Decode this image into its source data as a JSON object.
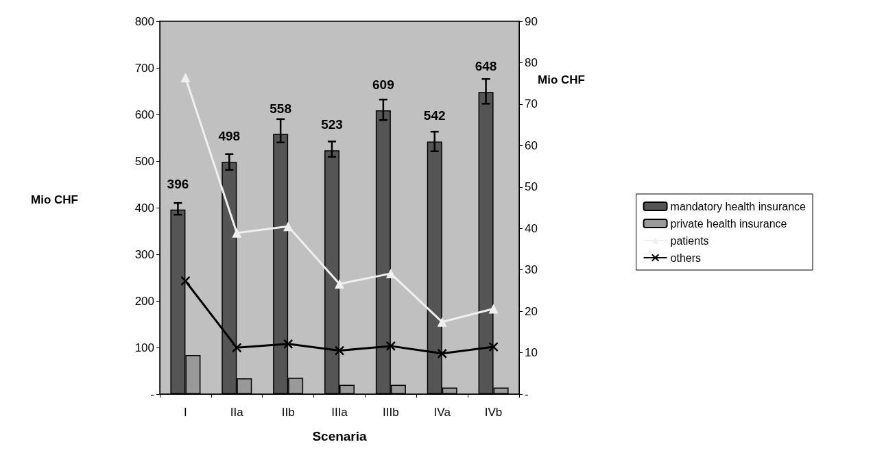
{
  "chart_data": {
    "type": "bar",
    "xlabel": "Scenaria",
    "ylabel": "Mio CHF",
    "y2label": "Mio CHF",
    "categories": [
      "I",
      "IIa",
      "IIb",
      "IIIa",
      "IIIb",
      "IVa",
      "IVb"
    ],
    "series": [
      {
        "name": "mandatory health insurance",
        "color": "#555555",
        "values": [
          396,
          498,
          558,
          523,
          609,
          542,
          648
        ],
        "value_labels": [
          "396",
          "498",
          "558",
          "523",
          "609",
          "542",
          "648"
        ],
        "errors": [
          [
            385,
            410
          ],
          [
            481,
            515
          ],
          [
            540,
            590
          ],
          [
            509,
            542
          ],
          [
            588,
            632
          ],
          [
            521,
            563
          ],
          [
            623,
            676
          ]
        ]
      },
      {
        "name": "private health insurance",
        "color": "#999999",
        "values": [
          84,
          34,
          35,
          20,
          20,
          14,
          14
        ]
      },
      {
        "name": "patients",
        "type": "line",
        "axis": "y2",
        "color": "#f0f0f0",
        "marker": "triangle",
        "values": [
          76.4,
          38.9,
          40.5,
          26.6,
          29.1,
          17.4,
          20.6
        ]
      },
      {
        "name": "others",
        "type": "line",
        "axis": "y2",
        "color": "#000000",
        "marker": "cross",
        "values": [
          27.3,
          11.2,
          12.1,
          10.5,
          11.6,
          9.8,
          11.4
        ]
      }
    ],
    "ylim": [
      0,
      800
    ],
    "yticks": [
      {
        "value": 0,
        "label": "-"
      },
      100,
      200,
      300,
      400,
      500,
      600,
      700,
      800
    ],
    "y2lim": [
      0,
      90
    ],
    "y2ticks": [
      {
        "value": 0,
        "label": "-"
      },
      10,
      20,
      30,
      40,
      50,
      60,
      70,
      80,
      90
    ],
    "grid": false,
    "legend": "right"
  }
}
